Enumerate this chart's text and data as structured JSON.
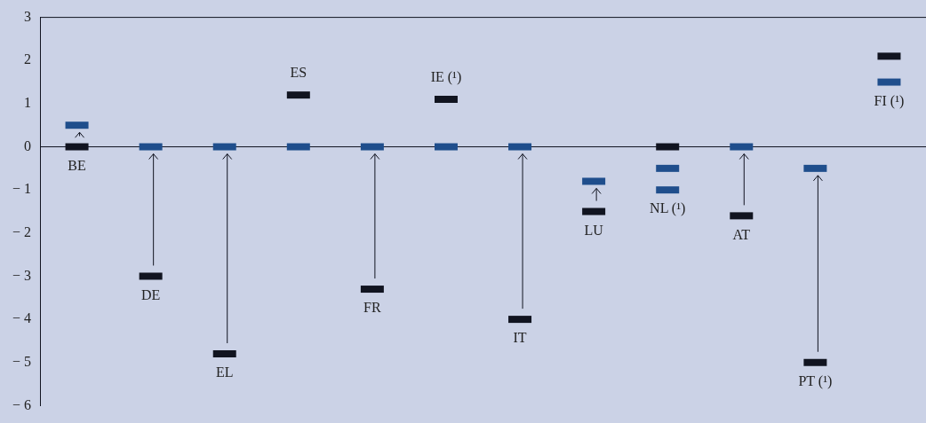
{
  "chart_data": {
    "type": "scatter",
    "categories": [
      "BE",
      "DE",
      "EL",
      "ES",
      "FR",
      "IE (¹)",
      "IT",
      "LU",
      "NL (¹)",
      "AT",
      "PT (¹)",
      "FI (¹)"
    ],
    "series": [
      {
        "color": "#111420",
        "values": [
          0,
          -3.0,
          -4.8,
          1.2,
          -3.3,
          1.1,
          -4.0,
          -1.5,
          0,
          -1.6,
          -5.0,
          2.1
        ]
      },
      {
        "color": "#1f4e8c",
        "values": [
          0.5,
          0,
          0,
          0,
          0,
          0,
          0,
          -0.8,
          -0.5,
          0,
          -0.5,
          1.5
        ]
      },
      {
        "color": "#1f4e8c",
        "values": [
          null,
          null,
          null,
          null,
          null,
          null,
          null,
          null,
          -1.0,
          null,
          null,
          null
        ]
      }
    ],
    "ylim": [
      -6,
      3
    ],
    "yticks": [
      {
        "value": -6,
        "label": "− 6"
      },
      {
        "value": -5,
        "label": "− 5"
      },
      {
        "value": -4,
        "label": "− 4"
      },
      {
        "value": -3,
        "label": "− 3"
      },
      {
        "value": -2,
        "label": "− 2"
      },
      {
        "value": -1,
        "label": "− 1"
      },
      0,
      1,
      2,
      3
    ],
    "ref_lines": [
      {
        "axis": "y",
        "value": 0,
        "color": "#111420"
      }
    ],
    "grid": false,
    "legend": false
  }
}
